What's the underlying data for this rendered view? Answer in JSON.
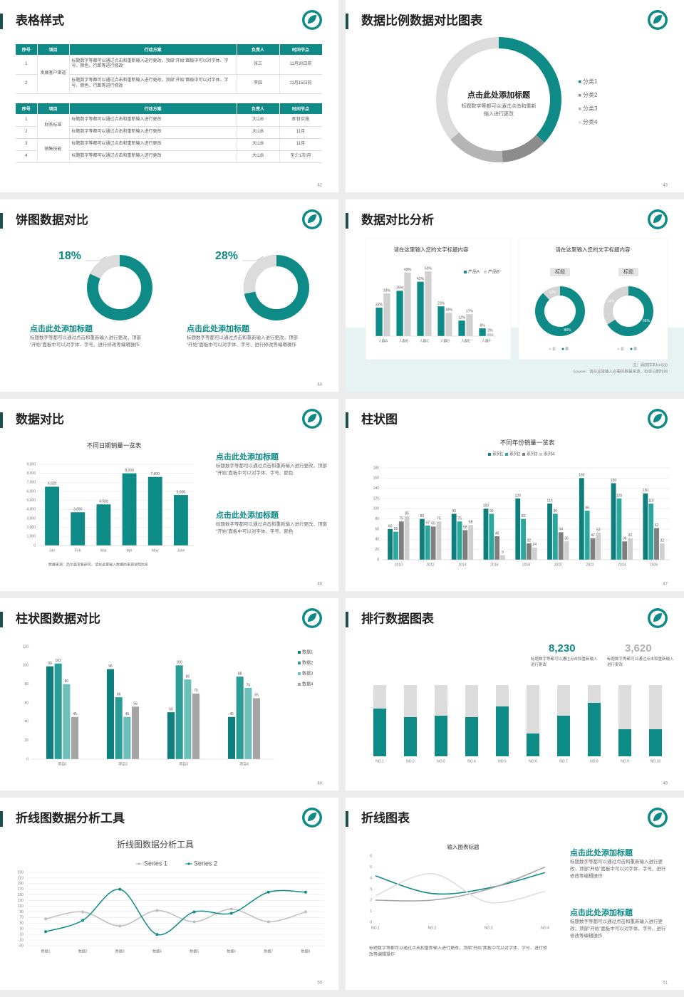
{
  "slides": [
    {
      "title": "表格样式",
      "page": 42,
      "tables": [
        {
          "header": [
            "序号",
            "项目",
            "行动方案",
            "负责人",
            "时间节点"
          ],
          "groups": [
            {
              "project": "发展客户渠道",
              "rows": [
                [
                  "1",
                  "标题数字等都可以通过点击和重新输入进行更改，顶部“开始”面板中可以对字体、字号、颜色、行距等进行修改",
                  "张三",
                  "11月30日前"
                ],
                [
                  "2",
                  "标题数字等都可以通过点击和重新输入进行更改，顶部“开始”面板中可以对字体、字号、颜色、行距等进行修改",
                  "李四",
                  "11月15日前"
                ]
              ]
            }
          ]
        },
        {
          "header": [
            "序号",
            "项目",
            "行动方案",
            "负责人",
            "时间节点"
          ],
          "groups": [
            {
              "project": "财务标准",
              "rows": [
                [
                  "1",
                  "标题数字等都可以通过点击和重新输入进行更改",
                  "大山B",
                  "即日实施"
                ],
                [
                  "2",
                  "标题数字等都可以通过点击和重新输入进行更改",
                  "大山B",
                  "11月"
                ]
              ]
            },
            {
              "project": "销售技能",
              "rows": [
                [
                  "3",
                  "标题数字等都可以通过点击和重新输入进行更改",
                  "大山B",
                  "11月"
                ],
                [
                  "4",
                  "标题数字等都可以通过点击和重新输入进行更改",
                  "大山B",
                  "至少1次/月"
                ]
              ]
            }
          ]
        }
      ]
    },
    {
      "title": "数据比例数据对比图表",
      "page": 43,
      "chart": {
        "type": "pie",
        "title": "点击此处添加标题",
        "text": "标题数字等都可以通过点击和重新输入进行更改",
        "categories": [
          "分类1",
          "分类2",
          "分类3",
          "分类4"
        ],
        "values": [
          37,
          12,
          15,
          36
        ],
        "colors": [
          "#0e8a87",
          "#8c8c8c",
          "#b5b5b5",
          "#dcdcdc"
        ]
      }
    },
    {
      "title": "饼图数据对比",
      "page": 44,
      "panels": [
        {
          "chart": {
            "type": "pie",
            "value": 18,
            "value_label": "18%",
            "color": "#0e8a87",
            "rest_color": "#dcdcdc"
          },
          "heading": "点击此处添加标题",
          "text": "标题数字等都可以通过点击和重新输入进行更改，顶部“开始”面板中可以对字体、字号、进行修改等编辑操作"
        },
        {
          "chart": {
            "type": "pie",
            "value": 28,
            "value_label": "28%",
            "color": "#0e8a87",
            "rest_color": "#dcdcdc"
          },
          "heading": "点击此处添加标题",
          "text": "标题数字等都可以通过点击和重新输入进行更改，顶部“开始”面板中可以对字体、字号、进行修改等编辑操作"
        }
      ]
    },
    {
      "title": "数据对比分析",
      "page": 45,
      "chart": {
        "type": "bar",
        "title": "请在这里输入您的文字标题内容",
        "categories": [
          "人群A",
          "人群B",
          "人群C",
          "人群D",
          "人群E",
          "人群F"
        ],
        "series": [
          {
            "name": "产品A",
            "color": "#0e8a87",
            "values": [
              22,
              35,
              42,
              23,
              12,
              6
            ],
            "value_labels": [
              "22%",
              "35%",
              "42%",
              "23%",
              "12%",
              "6%"
            ]
          },
          {
            "name": "产品B",
            "color": "#d0d0d0",
            "values": [
              33,
              49,
              50,
              18,
              17,
              2
            ],
            "value_labels": [
              "33%",
              "49%",
              "50%",
              "18%",
              "17%",
              "2%"
            ]
          }
        ]
      },
      "chart2": {
        "type": "pie",
        "title": "请在这里输入您的文字标题内容",
        "categories": [
          "女",
          "男"
        ],
        "colors": [
          "#d4d4d4",
          "#0e8a87"
        ],
        "donuts": [
          {
            "label": "标题",
            "values": [
              12,
              88
            ],
            "value_labels": [
              "12%",
              "88%"
            ]
          },
          {
            "label": "标题",
            "values": [
              34,
              66
            ],
            "value_labels": [
              "34%",
              "66%"
            ]
          }
        ]
      },
      "notes": [
        "注：调研样本N=500",
        "Source：请在这里输入必要的数据来源，检查日期时间"
      ]
    },
    {
      "title": "数据对比",
      "page": 46,
      "chart": {
        "type": "bar",
        "title": "不同日期销量一览表",
        "categories": [
          "Jan",
          "Feb",
          "Mar",
          "Apr",
          "May",
          "June"
        ],
        "values": [
          6520,
          3690,
          4560,
          8000,
          7600,
          5600
        ],
        "value_labels": [
          "6,520",
          "3,690",
          "4,560",
          "8,000",
          "7,600",
          "5,600"
        ],
        "color": "#0e8a87",
        "ylim": [
          0,
          9000
        ],
        "yticks": [
          0,
          {
            "value": 1000,
            "label": "1,000"
          },
          {
            "value": 2000,
            "label": "2,000"
          },
          {
            "value": 3000,
            "label": "3,000"
          },
          {
            "value": 4000,
            "label": "4,000"
          },
          {
            "value": 5000,
            "label": "5,000"
          },
          {
            "value": 6000,
            "label": "6,000"
          },
          {
            "value": 7000,
            "label": "7,000"
          },
          {
            "value": 8000,
            "label": "8,000"
          },
          {
            "value": 9000,
            "label": "9,000"
          }
        ],
        "grid": true,
        "source": "数据来源：后尔森零售研究，请在这里输入数据的来源说明信息"
      },
      "items": [
        {
          "heading": "点击此处添加标题",
          "text": "标题数字等都可以通过点击和重新输入进行更改，顶部“开始”面板中可以对字体、字号、颜色"
        },
        {
          "heading": "点击此处添加标题",
          "text": "标题数字等都可以通过点击和重新输入进行更改，顶部“开始”面板中可以对字体、字号、颜色"
        }
      ]
    },
    {
      "title": "柱状图",
      "page": 47,
      "chart": {
        "type": "bar",
        "title": "不同年份销量一览表",
        "categories": [
          "2010",
          "2012",
          "2014",
          "2016",
          "2018",
          "2020",
          "2022",
          "2024",
          "2026"
        ],
        "series": [
          {
            "name": "系列1",
            "color": "#0e7f7c",
            "values": [
              60,
              80,
              90,
              100,
              120,
              110,
              160,
              150,
              130
            ]
          },
          {
            "name": "系列2",
            "color": "#2aa8a0",
            "values": [
              55,
              67,
              75,
              90,
              80,
              90,
              96,
              120,
              110
            ]
          },
          {
            "name": "系列3",
            "color": "#7f7f7f",
            "values": [
              75,
              65,
              58,
              46,
              32,
              54,
              42,
              36,
              62
            ]
          },
          {
            "name": "系列4",
            "color": "#cfcfcf",
            "values": [
              85,
              75,
              68,
              9,
              24,
              36,
              53,
              42,
              32
            ]
          }
        ],
        "ylim": [
          0,
          180
        ],
        "yticks": [
          0,
          20,
          40,
          60,
          80,
          100,
          120,
          140,
          160,
          180
        ],
        "grid": true
      }
    },
    {
      "title": "柱状图数据对比",
      "page": 48,
      "chart": {
        "type": "bar",
        "categories": [
          "项目1",
          "项目2",
          "项目3",
          "项目4"
        ],
        "series": [
          {
            "name": "数据1",
            "color": "#0e7f7c",
            "values": [
              99,
              96,
              50,
              45
            ]
          },
          {
            "name": "数据2",
            "color": "#2a9d97",
            "values": [
              102,
              66,
              100,
              88
            ]
          },
          {
            "name": "数据3",
            "color": "#6cc0bb",
            "values": [
              80,
              45,
              85,
              76
            ]
          },
          {
            "name": "数据4",
            "color": "#a5a5a5",
            "values": [
              45,
              56,
              70,
              65
            ]
          }
        ],
        "ylim": [
          0,
          120
        ],
        "yticks": [
          0,
          20,
          40,
          60,
          80,
          100,
          120
        ],
        "grid": false
      }
    },
    {
      "title": "排行数据图表",
      "page": 49,
      "stats": [
        {
          "value": "8,230",
          "text": "标题数字等都可以通过点击和重新输入进行更改",
          "color": "#0e8a87"
        },
        {
          "value": "3,620",
          "text": "标题数字等都可以通过点击和重新输入进行更改",
          "color": "#b0b0b0"
        }
      ],
      "chart": {
        "type": "bar",
        "stacked": true,
        "categories": [
          "NO.1",
          "NO.2",
          "NO.3",
          "NO.4",
          "NO.5",
          "NO.6",
          "NO.7",
          "NO.8",
          "NO.9",
          "NO.10"
        ],
        "series": [
          {
            "color": "#0e8a87",
            "values": [
              67,
              55,
              57,
              55,
              70,
              32,
              57,
              75,
              38,
              38
            ]
          },
          {
            "color": "#dcdcdc",
            "values": [
              33,
              45,
              43,
              45,
              30,
              68,
              43,
              25,
              62,
              62
            ]
          }
        ]
      }
    },
    {
      "title": "折线图数据分析工具",
      "page": 50,
      "chart": {
        "type": "line",
        "title": "折线图数据分析工具",
        "categories": [
          "数据1",
          "数据2",
          "数据3",
          "数据4",
          "数据5",
          "数据6",
          "数据7",
          "数据8"
        ],
        "series": [
          {
            "name": "Series 1",
            "color": "#bdbdbd",
            "values": [
              65,
              90,
              40,
              95,
              55,
              100,
              55,
              90
            ]
          },
          {
            "name": "Series 2",
            "color": "#0e8a87",
            "values": [
              20,
              60,
              170,
              10,
              90,
              85,
              160,
              160
            ]
          }
        ],
        "ylim": [
          -30,
          230
        ],
        "yticks": [
          -30,
          -10,
          10,
          30,
          50,
          70,
          90,
          110,
          130,
          150,
          170,
          190,
          210,
          230
        ],
        "grid": true,
        "markers": true
      }
    },
    {
      "title": "折线图表",
      "page": 51,
      "chart": {
        "type": "line",
        "title": "输入图表标题",
        "categories": [
          "NO.1",
          "NO.2",
          "NO.3",
          "NO.4"
        ],
        "series": [
          {
            "color": "#0e8a87",
            "values": [
              4.2,
              2.6,
              3.1,
              4.5
            ]
          },
          {
            "color": "#a6a6a6",
            "values": [
              2,
              2,
              3,
              5
            ]
          },
          {
            "color": "#dedede",
            "values": [
              2.4,
              4.4,
              1.8,
              2.8
            ]
          }
        ],
        "ylim": [
          0,
          6
        ],
        "yticks": [
          0,
          1,
          2,
          3,
          4,
          5,
          6
        ],
        "grid": false,
        "markers": false
      },
      "text": "标题数字等都可以通过点击和重新输入进行更改，顶部“开始”面板中可以对字体、字号、进行修改等编辑操作",
      "items": [
        {
          "heading": "点击此处添加标题",
          "text": "标题数字等都可以通过点击和重新输入进行更改，顶部“开始”面板中可以对字体、字号、进行修改等编辑操作"
        },
        {
          "heading": "点击此处添加标题",
          "text": "标题数字等都可以通过点击和重新输入进行更改，顶部“开始”面板中可以对字体、字号、进行修改等编辑操作"
        }
      ]
    }
  ]
}
